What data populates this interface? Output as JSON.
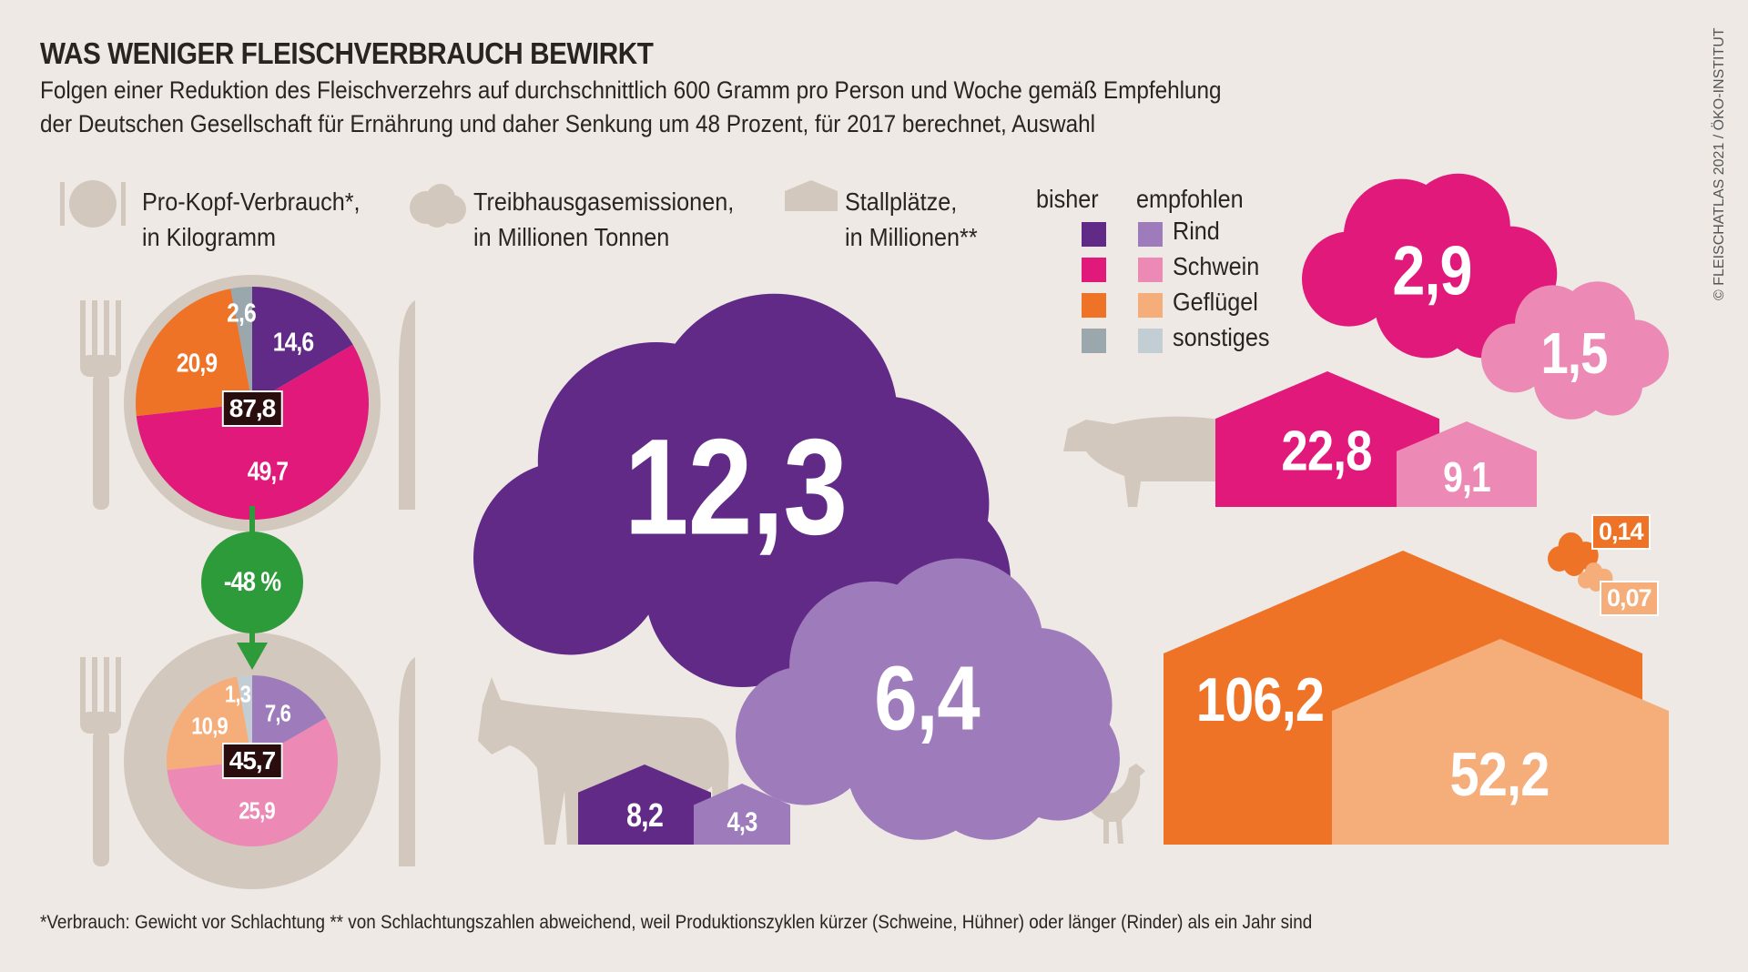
{
  "title": "WAS WENIGER FLEISCHVERBRAUCH BEWIRKT",
  "subtitle_lines": [
    "Folgen einer Reduktion des Fleischverzehrs auf durchschnittlich 600 Gramm pro Person und Woche gemäß Empfehlung",
    "der Deutschen Gesellschaft für Ernährung und daher Senkung um 48 Prozent, für 2017 berechnet, Auswahl"
  ],
  "legend": {
    "consumption": {
      "line1": "Pro-Kopf-Verbrauch*,",
      "line2": "in Kilogramm",
      "icon": "plate-icon"
    },
    "emissions": {
      "line1": "Treibhausgasemissionen,",
      "line2": "in Millionen Tonnen",
      "icon": "cloud-icon"
    },
    "stalls": {
      "line1": "Stallplätze,",
      "line2": "in Millionen**",
      "icon": "barn-icon"
    },
    "col_before": "bisher",
    "col_recommended": "empfohlen",
    "categories": [
      {
        "label": "Rind",
        "before": "#622a87",
        "recommended": "#9e7bbb"
      },
      {
        "label": "Schwein",
        "before": "#e0197a",
        "recommended": "#ec8ab5"
      },
      {
        "label": "Geflügel",
        "before": "#ee7326",
        "recommended": "#f5ad7a"
      },
      {
        "label": "sonstiges",
        "before": "#9aa8ae",
        "recommended": "#c3ced4"
      }
    ]
  },
  "reduction_label": "-48 %",
  "copyright": "© FLEISCHATLAS 2021 / ÖKO-INSTITUT",
  "footnote": "*Verbrauch: Gewicht vor Schlachtung    ** von Schlachtungszahlen abweichend, weil Produktionszyklen kürzer (Schweine, Hühner) oder länger (Rinder) als ein Jahr sind",
  "chart_data": [
    {
      "type": "pie",
      "title": "bisher",
      "total": "87,8",
      "categories": [
        "Rind",
        "Schwein",
        "Geflügel",
        "sonstiges"
      ],
      "values": [
        14.6,
        49.7,
        20.9,
        2.6
      ],
      "labels": [
        "14,6",
        "49,7",
        "20,9",
        "2,6"
      ]
    },
    {
      "type": "pie",
      "title": "empfohlen",
      "total": "45,7",
      "categories": [
        "Rind",
        "Schwein",
        "Geflügel",
        "sonstiges"
      ],
      "values": [
        7.6,
        25.9,
        10.9,
        1.3
      ],
      "labels": [
        "7,6",
        "25,9",
        "10,9",
        "1,3"
      ]
    },
    {
      "type": "bar",
      "title": "Treibhausgasemissionen",
      "categories": [
        "Rind",
        "Schwein",
        "Geflügel"
      ],
      "series": [
        {
          "name": "bisher",
          "values": [
            12.3,
            2.9,
            0.14
          ],
          "labels": [
            "12,3",
            "2,9",
            "0,14"
          ]
        },
        {
          "name": "empfohlen",
          "values": [
            6.4,
            1.5,
            0.07
          ],
          "labels": [
            "6,4",
            "1,5",
            "0,07"
          ]
        }
      ]
    },
    {
      "type": "bar",
      "title": "Stallplätze",
      "categories": [
        "Rind",
        "Schwein",
        "Geflügel"
      ],
      "series": [
        {
          "name": "bisher",
          "values": [
            8.2,
            22.8,
            106.2
          ],
          "labels": [
            "8,2",
            "22,8",
            "106,2"
          ]
        },
        {
          "name": "empfohlen",
          "values": [
            4.3,
            9.1,
            52.2
          ],
          "labels": [
            "4,3",
            "9,1",
            "52,2"
          ]
        }
      ]
    }
  ]
}
